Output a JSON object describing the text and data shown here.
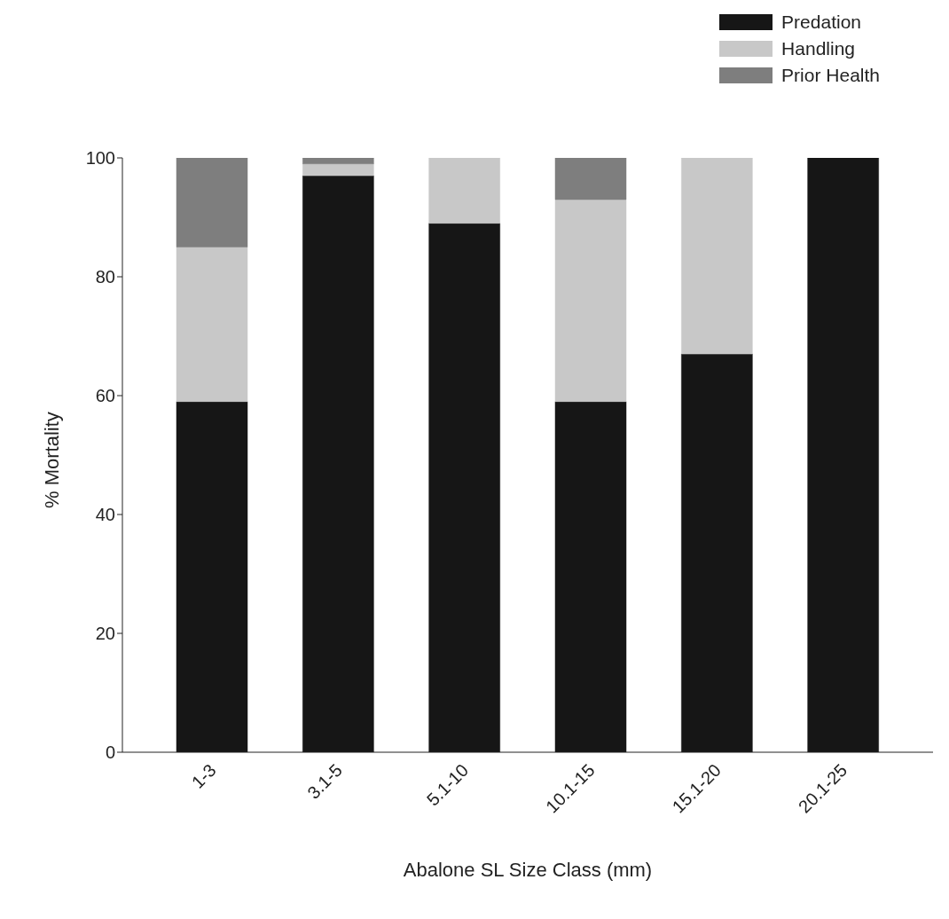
{
  "chart_data": {
    "type": "bar",
    "stacked": true,
    "xlabel": "Abalone SL Size Class (mm)",
    "ylabel": "% Mortality",
    "categories": [
      "1-3",
      "3.1-5",
      "5.1-10",
      "10.1-15",
      "15.1-20",
      "20.1-25"
    ],
    "series": [
      {
        "name": "Predation",
        "color": "#161616",
        "values": [
          59,
          97,
          89,
          59,
          67,
          100
        ]
      },
      {
        "name": "Handling",
        "color": "#c8c8c8",
        "values": [
          26,
          2,
          11,
          34,
          33,
          0
        ]
      },
      {
        "name": "Prior Health",
        "color": "#7e7e7e",
        "values": [
          15,
          1,
          0,
          7,
          0,
          0
        ]
      }
    ],
    "ylim": [
      0,
      100
    ],
    "yticks": [
      0,
      20,
      40,
      60,
      80,
      100
    ],
    "grid": false,
    "legend": "top right"
  }
}
